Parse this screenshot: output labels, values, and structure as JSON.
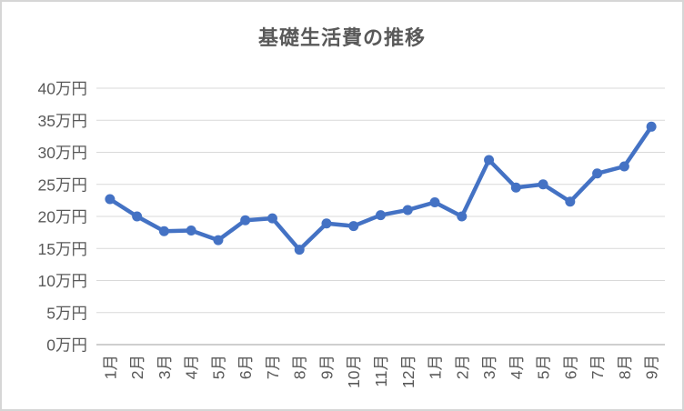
{
  "window": {
    "background": "#ffffff",
    "border_color": "#d6d6d6"
  },
  "chart_data": {
    "type": "line",
    "title": "基礎生活費の推移",
    "categories": [
      "1月",
      "2月",
      "3月",
      "4月",
      "5月",
      "6月",
      "7月",
      "8月",
      "9月",
      "10月",
      "11月",
      "12月",
      "1月",
      "2月",
      "3月",
      "4月",
      "5月",
      "6月",
      "7月",
      "8月",
      "9月"
    ],
    "series": [
      {
        "name": "基礎生活費",
        "values": [
          22.7,
          20.0,
          17.7,
          17.8,
          16.3,
          19.4,
          19.7,
          14.8,
          18.9,
          18.5,
          20.2,
          21.0,
          22.2,
          20.0,
          28.8,
          24.5,
          25.0,
          22.3,
          26.7,
          27.8,
          34.0
        ]
      }
    ],
    "unit": "万円",
    "xlabel": "",
    "ylabel": "",
    "ylim": [
      0,
      40
    ],
    "y_ticks": [
      0,
      5,
      10,
      15,
      20,
      25,
      30,
      35,
      40
    ],
    "y_tick_labels": [
      "0万円",
      "5万円",
      "10万円",
      "15万円",
      "20万円",
      "25万円",
      "30万円",
      "35万円",
      "40万円"
    ],
    "x_tick_rotation_degrees": 90,
    "grid": "horizontal",
    "legend": "none",
    "marker": "circle",
    "line_color": "#4472C4",
    "marker_color": "#4472C4",
    "text_color": "#595959",
    "gridline_color": "#d9d9d9",
    "axis_line_color": "#bfbfbf"
  }
}
